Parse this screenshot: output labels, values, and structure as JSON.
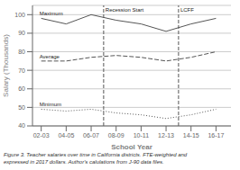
{
  "chart_data": {
    "type": "line",
    "x": [
      2002,
      2004,
      2006,
      2008,
      2010,
      2012,
      2014,
      2016
    ],
    "x_label": "School Year",
    "y_label": "Salary (Thousands)",
    "xlim": [
      2001.3,
      2017.2
    ],
    "xticks": [
      {
        "value": 2002,
        "label": "02-03"
      },
      {
        "value": 2004,
        "label": "04-05"
      },
      {
        "value": 2006,
        "label": "06-07"
      },
      {
        "value": 2008,
        "label": "08-09"
      },
      {
        "value": 2010,
        "label": "10-11"
      },
      {
        "value": 2012,
        "label": "12-13"
      },
      {
        "value": 2014,
        "label": "14-15"
      },
      {
        "value": 2016,
        "label": "16-17"
      }
    ],
    "ylim": [
      40,
      105
    ],
    "yticks": [
      40,
      50,
      60,
      70,
      80,
      90,
      100
    ],
    "grid": true,
    "series": [
      {
        "name": "Maximum",
        "color": "#555555",
        "line_style": "solid",
        "values": [
          98,
          95,
          100,
          97,
          95,
          91,
          95,
          98
        ]
      },
      {
        "name": "Average",
        "color": "#555555",
        "line_style": "dashed",
        "values": [
          75,
          75,
          77,
          78,
          77,
          75,
          77,
          80
        ]
      },
      {
        "name": "Minimum",
        "color": "#555555",
        "line_style": "dotted",
        "values": [
          49,
          48,
          49,
          47,
          46,
          44,
          46,
          49
        ]
      }
    ],
    "annotations": [
      {
        "type": "vline",
        "x": 2007,
        "text": "Recession Start",
        "color": "#555555"
      },
      {
        "type": "vline",
        "x": 2013,
        "text": "LCFF",
        "color": "#555555"
      }
    ],
    "caption": [
      "Figure 3. Teacher salaries over time in California districts. FTE-weighted and",
      "expressed in 2017 dollars. Author's calulations from J-90 data files."
    ]
  }
}
